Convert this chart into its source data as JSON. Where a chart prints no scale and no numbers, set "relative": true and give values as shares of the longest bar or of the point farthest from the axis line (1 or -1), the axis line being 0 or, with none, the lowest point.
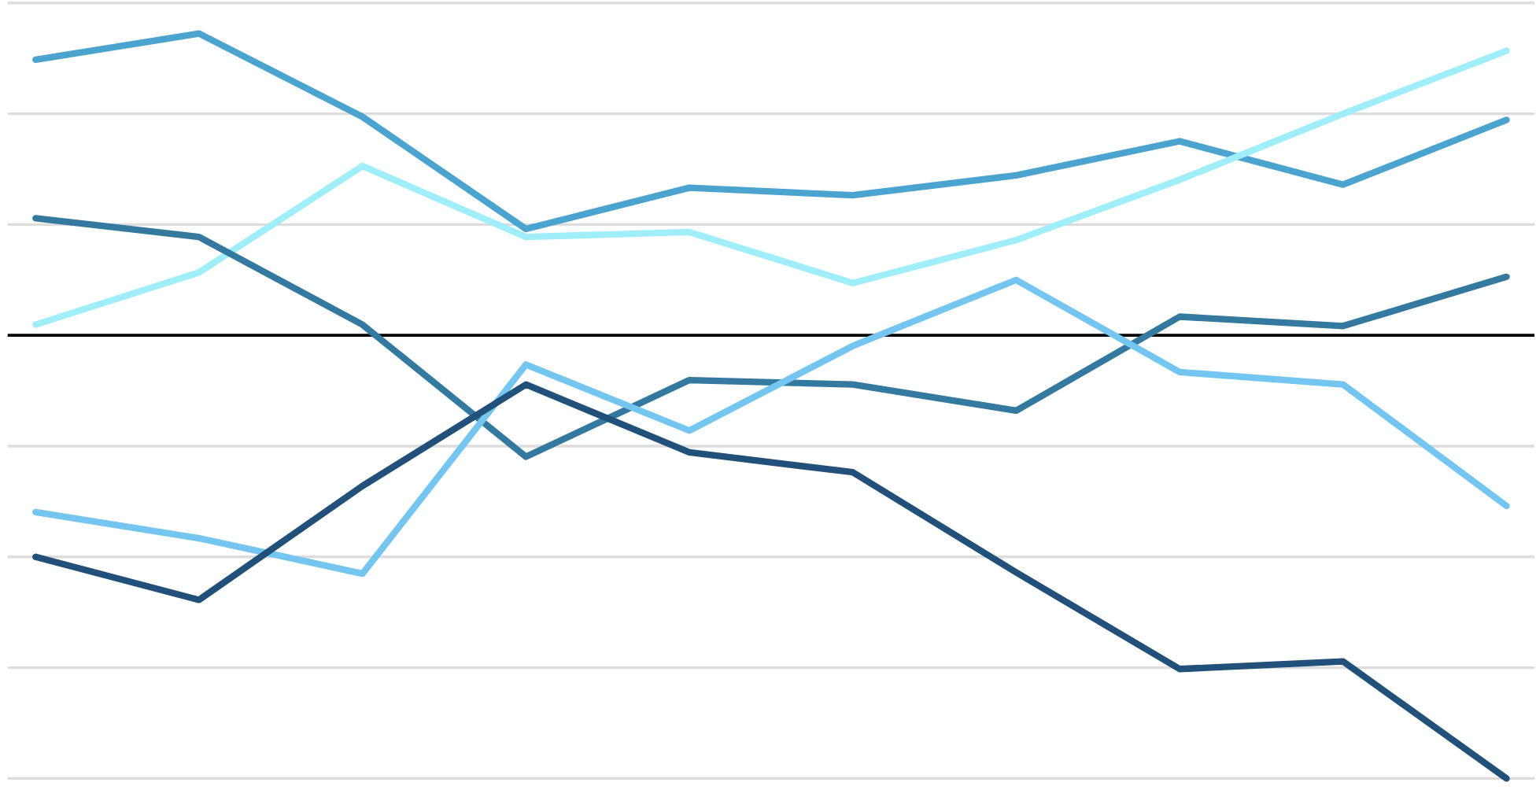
{
  "chart_data": {
    "type": "line",
    "relative": true,
    "grid": "y",
    "categories": [
      null,
      null,
      null,
      null,
      null,
      null,
      null,
      null,
      null,
      null
    ],
    "series": [
      {
        "color": "#4ba3d0",
        "values": [
          0.622,
          0.681,
          0.493,
          0.24,
          0.333,
          0.316,
          0.361,
          0.438,
          0.34,
          0.486
        ]
      },
      {
        "color": "#a0eefa",
        "values": [
          0.024,
          0.142,
          0.382,
          0.222,
          0.233,
          0.118,
          0.215,
          0.351,
          0.5,
          0.642
        ]
      },
      {
        "color": "#3479a0",
        "values": [
          0.264,
          0.222,
          0.024,
          -0.274,
          -0.101,
          -0.111,
          -0.17,
          0.042,
          0.021,
          0.132
        ]
      },
      {
        "color": "#74c6f0",
        "values": [
          -0.399,
          -0.458,
          -0.538,
          -0.066,
          -0.215,
          -0.024,
          0.125,
          -0.083,
          -0.111,
          -0.385
        ]
      },
      {
        "color": "#21507a",
        "values": [
          -0.5,
          -0.597,
          -0.34,
          -0.111,
          -0.264,
          -0.309,
          -0.535,
          -0.753,
          -0.736,
          -1
        ]
      }
    ],
    "ref_lines": [
      {
        "axis": "y",
        "value": 0,
        "color": "#000000"
      }
    ]
  }
}
